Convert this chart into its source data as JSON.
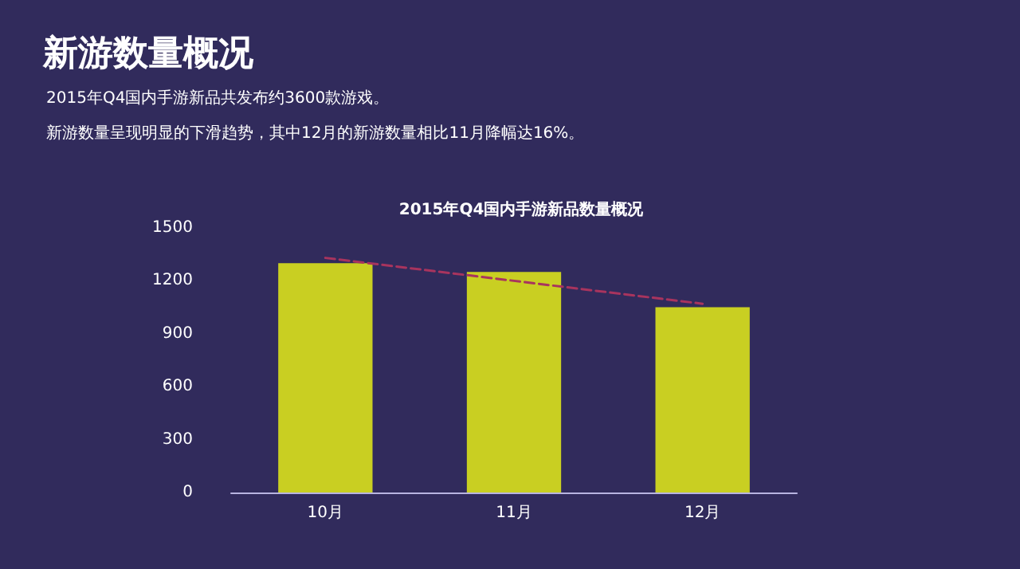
{
  "chart_data": {
    "type": "bar",
    "title": "新游数量概况",
    "subtitle": "2015年Q4国内手游新品共发布约3600款游戏。",
    "annotations": [
      "新游数量呈现明显的下滑趋势，其中12月的新游数量相比11月降幅达16%。",
      "2015年Q4国内手游新品数量概况"
    ],
    "categories": [
      "10月",
      "11月",
      "12月"
    ],
    "series": [
      {
        "color": "#c9cf22",
        "values": [
          1300,
          1250,
          1050
        ]
      },
      {
        "type": "line",
        "color": "#a8345e",
        "x": [
          "10月",
          "12月"
        ],
        "values": [
          1330,
          1070
        ],
        "line_style": "dashed",
        "marker": "none"
      }
    ],
    "ylim": [
      0,
      1500
    ],
    "yticks": [
      0,
      300,
      600,
      900,
      1200,
      1500
    ],
    "grid": false
  }
}
